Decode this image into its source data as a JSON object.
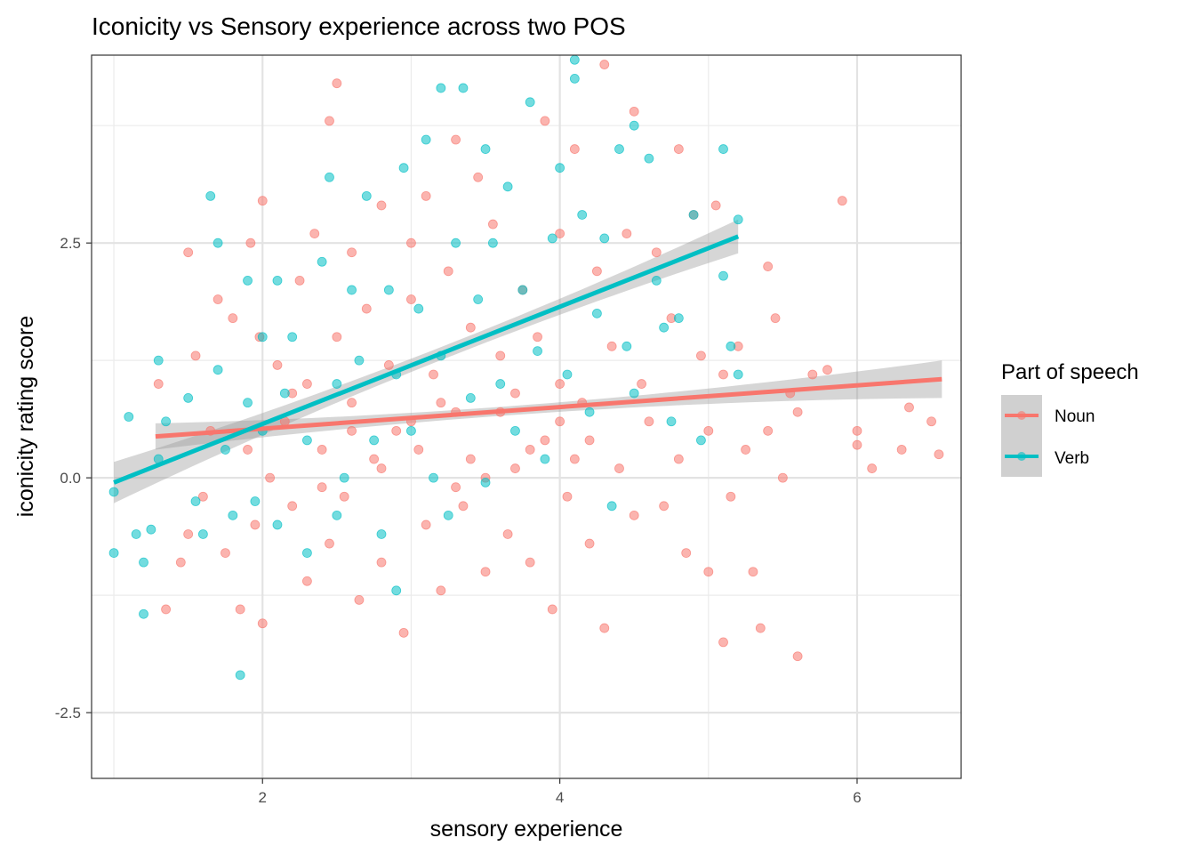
{
  "chart_data": {
    "type": "scatter",
    "title": "Iconicity vs Sensory experience across two POS",
    "xlabel": "sensory experience",
    "ylabel": "iconicity rating score",
    "xlim": [
      0.85,
      6.7
    ],
    "ylim": [
      -3.2,
      4.5
    ],
    "x_ticks": [
      2,
      4,
      6
    ],
    "x_tick_labels": [
      "2",
      "4",
      "6"
    ],
    "y_ticks": [
      -2.5,
      0.0,
      2.5
    ],
    "y_tick_labels": [
      "-2.5",
      "0.0",
      "2.5"
    ],
    "grid": true,
    "legend": {
      "title": "Part of speech",
      "position": "right",
      "entries": [
        "Noun",
        "Verb"
      ]
    },
    "series": [
      {
        "name": "Noun",
        "color": "#F8766D",
        "points": [
          [
            1.3,
            1.0
          ],
          [
            1.35,
            -1.4
          ],
          [
            1.45,
            -0.9
          ],
          [
            1.5,
            2.4
          ],
          [
            1.5,
            -0.6
          ],
          [
            1.55,
            1.3
          ],
          [
            1.6,
            -0.2
          ],
          [
            1.65,
            0.5
          ],
          [
            1.7,
            1.9
          ],
          [
            1.75,
            -0.8
          ],
          [
            1.8,
            1.7
          ],
          [
            1.85,
            -1.4
          ],
          [
            1.9,
            0.3
          ],
          [
            1.92,
            2.5
          ],
          [
            1.95,
            -0.5
          ],
          [
            1.98,
            1.5
          ],
          [
            2.0,
            -1.55
          ],
          [
            2.0,
            2.95
          ],
          [
            2.05,
            0.0
          ],
          [
            2.1,
            1.2
          ],
          [
            2.15,
            0.6
          ],
          [
            2.2,
            -0.3
          ],
          [
            2.25,
            2.1
          ],
          [
            2.3,
            1.0
          ],
          [
            2.3,
            -1.1
          ],
          [
            2.35,
            2.6
          ],
          [
            2.4,
            0.3
          ],
          [
            2.45,
            -0.7
          ],
          [
            2.45,
            3.8
          ],
          [
            2.5,
            4.2
          ],
          [
            2.5,
            1.5
          ],
          [
            2.55,
            -0.2
          ],
          [
            2.6,
            2.4
          ],
          [
            2.6,
            0.8
          ],
          [
            2.65,
            -1.3
          ],
          [
            2.7,
            1.8
          ],
          [
            2.75,
            0.2
          ],
          [
            2.8,
            2.9
          ],
          [
            2.8,
            -0.9
          ],
          [
            2.85,
            1.2
          ],
          [
            2.9,
            0.5
          ],
          [
            2.95,
            -1.65
          ],
          [
            3.0,
            2.5
          ],
          [
            3.0,
            1.9
          ],
          [
            3.05,
            0.3
          ],
          [
            3.1,
            -0.5
          ],
          [
            3.1,
            3.0
          ],
          [
            3.15,
            1.1
          ],
          [
            3.2,
            -1.2
          ],
          [
            3.25,
            2.2
          ],
          [
            3.3,
            0.7
          ],
          [
            3.3,
            3.6
          ],
          [
            3.35,
            -0.3
          ],
          [
            3.4,
            1.6
          ],
          [
            3.45,
            3.2
          ],
          [
            3.5,
            0.0
          ],
          [
            3.5,
            -1.0
          ],
          [
            3.55,
            2.7
          ],
          [
            3.6,
            1.3
          ],
          [
            3.65,
            -0.6
          ],
          [
            3.7,
            0.9
          ],
          [
            3.75,
            2.0
          ],
          [
            3.8,
            -0.9
          ],
          [
            3.85,
            1.5
          ],
          [
            3.9,
            3.8
          ],
          [
            3.9,
            0.4
          ],
          [
            3.95,
            -1.4
          ],
          [
            4.0,
            2.6
          ],
          [
            4.0,
            1.0
          ],
          [
            4.05,
            -0.2
          ],
          [
            4.1,
            3.5
          ],
          [
            4.15,
            0.8
          ],
          [
            4.2,
            -0.7
          ],
          [
            4.25,
            2.2
          ],
          [
            4.3,
            4.4
          ],
          [
            4.3,
            -1.6
          ],
          [
            4.35,
            1.4
          ],
          [
            4.4,
            0.1
          ],
          [
            4.45,
            2.6
          ],
          [
            4.5,
            -0.4
          ],
          [
            4.5,
            3.9
          ],
          [
            4.55,
            1.0
          ],
          [
            4.6,
            0.6
          ],
          [
            4.65,
            2.4
          ],
          [
            4.7,
            -0.3
          ],
          [
            4.75,
            1.7
          ],
          [
            4.8,
            3.5
          ],
          [
            4.8,
            0.2
          ],
          [
            4.85,
            -0.8
          ],
          [
            4.9,
            2.8
          ],
          [
            4.95,
            1.3
          ],
          [
            5.0,
            0.5
          ],
          [
            5.0,
            -1.0
          ],
          [
            5.05,
            2.9
          ],
          [
            5.1,
            1.1
          ],
          [
            5.1,
            -1.75
          ],
          [
            5.15,
            -0.2
          ],
          [
            5.2,
            1.4
          ],
          [
            5.25,
            0.3
          ],
          [
            5.3,
            -1.0
          ],
          [
            5.35,
            -1.6
          ],
          [
            5.4,
            2.25
          ],
          [
            5.4,
            0.5
          ],
          [
            5.45,
            1.7
          ],
          [
            5.5,
            0.0
          ],
          [
            5.55,
            0.9
          ],
          [
            5.6,
            -1.9
          ],
          [
            5.6,
            0.7
          ],
          [
            5.7,
            1.1
          ],
          [
            5.8,
            1.15
          ],
          [
            5.9,
            2.95
          ],
          [
            6.0,
            0.5
          ],
          [
            6.0,
            0.35
          ],
          [
            6.1,
            0.1
          ],
          [
            6.3,
            0.3
          ],
          [
            6.35,
            0.75
          ],
          [
            6.5,
            0.6
          ],
          [
            6.55,
            0.25
          ],
          [
            2.2,
            0.9
          ],
          [
            2.6,
            0.5
          ],
          [
            3.0,
            0.6
          ],
          [
            3.2,
            0.8
          ],
          [
            3.4,
            0.2
          ],
          [
            3.6,
            0.7
          ],
          [
            3.8,
            0.3
          ],
          [
            4.0,
            0.6
          ],
          [
            4.2,
            0.4
          ],
          [
            2.4,
            -0.1
          ],
          [
            2.8,
            0.1
          ],
          [
            3.3,
            -0.1
          ],
          [
            3.7,
            0.1
          ],
          [
            4.1,
            0.2
          ]
        ]
      },
      {
        "name": "Verb",
        "color": "#00BFC4",
        "points": [
          [
            1.0,
            -0.15
          ],
          [
            1.0,
            -0.8
          ],
          [
            1.1,
            0.65
          ],
          [
            1.15,
            -0.6
          ],
          [
            1.2,
            -1.45
          ],
          [
            1.2,
            -0.9
          ],
          [
            1.25,
            -0.55
          ],
          [
            1.3,
            1.25
          ],
          [
            1.3,
            0.2
          ],
          [
            1.35,
            0.6
          ],
          [
            1.5,
            0.85
          ],
          [
            1.55,
            -0.25
          ],
          [
            1.6,
            -0.6
          ],
          [
            1.65,
            3.0
          ],
          [
            1.7,
            2.5
          ],
          [
            1.7,
            1.15
          ],
          [
            1.75,
            0.3
          ],
          [
            1.8,
            -0.4
          ],
          [
            1.85,
            -2.1
          ],
          [
            1.9,
            2.1
          ],
          [
            1.9,
            0.8
          ],
          [
            1.95,
            -0.25
          ],
          [
            2.0,
            1.5
          ],
          [
            2.0,
            0.5
          ],
          [
            2.1,
            2.1
          ],
          [
            2.1,
            -0.5
          ],
          [
            2.15,
            0.9
          ],
          [
            2.2,
            1.5
          ],
          [
            2.3,
            0.4
          ],
          [
            2.3,
            -0.8
          ],
          [
            2.4,
            2.3
          ],
          [
            2.45,
            3.2
          ],
          [
            2.5,
            1.0
          ],
          [
            2.5,
            -0.4
          ],
          [
            2.55,
            0.0
          ],
          [
            2.6,
            2.0
          ],
          [
            2.65,
            1.25
          ],
          [
            2.7,
            3.0
          ],
          [
            2.75,
            0.4
          ],
          [
            2.8,
            -0.6
          ],
          [
            2.85,
            2.0
          ],
          [
            2.9,
            1.1
          ],
          [
            2.9,
            -1.2
          ],
          [
            2.95,
            3.3
          ],
          [
            3.0,
            0.5
          ],
          [
            3.05,
            1.8
          ],
          [
            3.1,
            3.6
          ],
          [
            3.15,
            0.0
          ],
          [
            3.2,
            4.15
          ],
          [
            3.2,
            1.3
          ],
          [
            3.25,
            -0.4
          ],
          [
            3.3,
            2.5
          ],
          [
            3.35,
            4.15
          ],
          [
            3.4,
            0.85
          ],
          [
            3.45,
            1.9
          ],
          [
            3.5,
            3.5
          ],
          [
            3.5,
            -0.05
          ],
          [
            3.55,
            2.5
          ],
          [
            3.6,
            1.0
          ],
          [
            3.65,
            3.1
          ],
          [
            3.7,
            0.5
          ],
          [
            3.75,
            2.0
          ],
          [
            3.8,
            4.0
          ],
          [
            3.85,
            1.35
          ],
          [
            3.9,
            0.2
          ],
          [
            3.95,
            2.55
          ],
          [
            4.0,
            3.3
          ],
          [
            4.05,
            1.1
          ],
          [
            4.1,
            4.45
          ],
          [
            4.1,
            4.25
          ],
          [
            4.15,
            2.8
          ],
          [
            4.2,
            0.7
          ],
          [
            4.25,
            1.75
          ],
          [
            4.3,
            2.55
          ],
          [
            4.35,
            -0.3
          ],
          [
            4.4,
            3.5
          ],
          [
            4.45,
            1.4
          ],
          [
            4.5,
            3.75
          ],
          [
            4.5,
            0.9
          ],
          [
            4.6,
            3.4
          ],
          [
            4.65,
            2.1
          ],
          [
            4.7,
            1.6
          ],
          [
            4.75,
            0.6
          ],
          [
            4.8,
            1.7
          ],
          [
            4.9,
            2.8
          ],
          [
            4.95,
            0.4
          ],
          [
            5.1,
            3.5
          ],
          [
            5.15,
            1.4
          ],
          [
            5.1,
            2.15
          ],
          [
            5.2,
            2.75
          ],
          [
            5.2,
            1.1
          ]
        ]
      }
    ],
    "fits": [
      {
        "series": "Noun",
        "x": [
          1.28,
          6.57
        ],
        "y": [
          0.44,
          1.05
        ],
        "band_halfwidth_start": 0.14,
        "band_halfwidth_mid": 0.05,
        "band_halfwidth_end": 0.2
      },
      {
        "series": "Verb",
        "x": [
          1.0,
          5.2
        ],
        "y": [
          -0.05,
          2.57
        ],
        "band_halfwidth_start": 0.22,
        "band_halfwidth_mid": 0.07,
        "band_halfwidth_end": 0.18
      }
    ]
  }
}
